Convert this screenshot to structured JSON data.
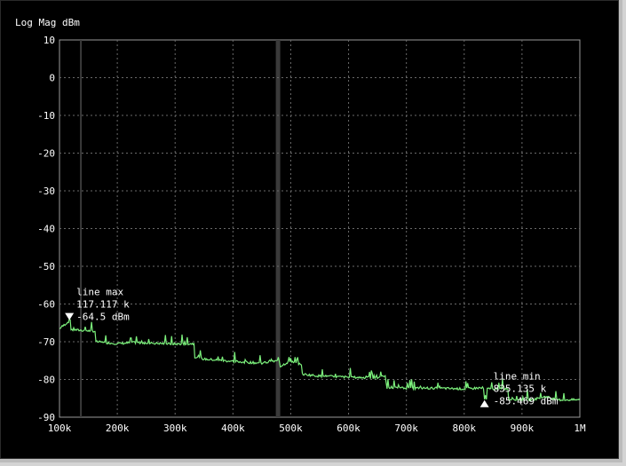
{
  "chart_data": {
    "type": "line",
    "title": "Log Mag dBm",
    "xlabel": "",
    "ylabel": "",
    "x_ticks": [
      "100k",
      "200k",
      "300k",
      "400k",
      "500k",
      "600k",
      "700k",
      "800k",
      "900k",
      "1M"
    ],
    "x_tick_values": [
      100000,
      200000,
      300000,
      400000,
      500000,
      600000,
      700000,
      800000,
      900000,
      1000000
    ],
    "y_ticks": [
      10,
      0,
      -10,
      -20,
      -30,
      -40,
      -50,
      -60,
      -70,
      -80,
      -90
    ],
    "xlim": [
      100000,
      1000000
    ],
    "ylim": [
      -90,
      10
    ],
    "grid": true,
    "line_color": "#7cf07c",
    "background_color": "#000000",
    "x_unit_factor": 1000,
    "series": [
      {
        "values": [
          [
            100000,
            -66.5
          ],
          [
            117117,
            -64.5
          ],
          [
            120000,
            -66.8
          ],
          [
            160000,
            -67.2
          ],
          [
            163000,
            -70.0
          ],
          [
            200000,
            -70.5
          ],
          [
            230000,
            -70.2
          ],
          [
            300000,
            -70.6
          ],
          [
            330000,
            -70.5
          ],
          [
            334000,
            -74.0
          ],
          [
            350000,
            -74.6
          ],
          [
            400000,
            -75.2
          ],
          [
            450000,
            -75.7
          ],
          [
            480000,
            -75.0
          ],
          [
            482000,
            -76.5
          ],
          [
            500000,
            -75.0
          ],
          [
            512000,
            -76.0
          ],
          [
            520000,
            -78.6
          ],
          [
            550000,
            -79.1
          ],
          [
            600000,
            -79.4
          ],
          [
            650000,
            -79.6
          ],
          [
            660000,
            -79.0
          ],
          [
            665000,
            -82.2
          ],
          [
            700000,
            -82.3
          ],
          [
            750000,
            -82.3
          ],
          [
            800000,
            -82.5
          ],
          [
            830000,
            -82.2
          ],
          [
            835135,
            -85.469
          ],
          [
            840000,
            -82.5
          ],
          [
            880000,
            -85.3
          ],
          [
            920000,
            -85.3
          ],
          [
            940000,
            -84.5
          ],
          [
            960000,
            -85.4
          ],
          [
            1000000,
            -85.4
          ]
        ]
      }
    ],
    "markers": [
      {
        "label": "line max",
        "freq_text": "117.117 k",
        "value_text": "-64.5 dBm",
        "x": 117117,
        "y": -64.5,
        "direction": "down"
      },
      {
        "label": "line min",
        "freq_text": "835.135 k",
        "value_text": "-85.469 dBm",
        "x": 835135,
        "y": -85.469,
        "direction": "up"
      }
    ],
    "vertical_lines": [
      {
        "x": 137000,
        "color": "#3a3a3a"
      },
      {
        "x": 478000,
        "color": "#3a3a3a"
      }
    ]
  }
}
